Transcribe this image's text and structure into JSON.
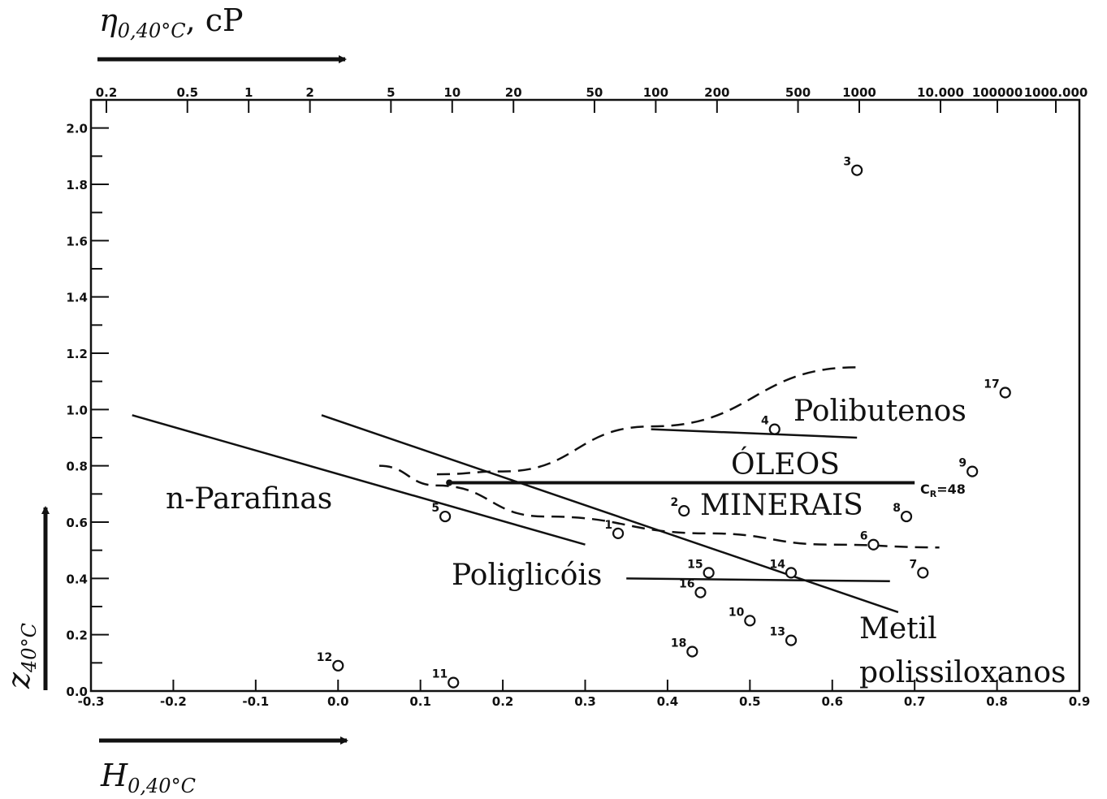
{
  "chart_data": {
    "type": "scatter",
    "axes": {
      "x_bottom": {
        "label": "H",
        "label_sub": "0,40°C",
        "range": [
          -0.3,
          0.9
        ],
        "ticks": [
          -0.3,
          -0.2,
          -0.1,
          0.0,
          0.1,
          0.2,
          0.3,
          0.4,
          0.5,
          0.6,
          0.7,
          0.8,
          0.9
        ],
        "tick_labels": [
          "-0.3",
          "-0.2",
          "-0.1",
          "0.0",
          "0.1",
          "0.2",
          "0.3",
          "0.4",
          "0.5",
          "0.6",
          "0.7",
          "0.8",
          "0.9"
        ]
      },
      "x_top": {
        "label": "η",
        "label_sub": "0,40°C",
        "label_unit": ", cP",
        "ticks": [
          0.2,
          0.5,
          1,
          2,
          5,
          10,
          20,
          50,
          100,
          200,
          500,
          1000,
          10000,
          100000,
          1000000
        ],
        "tick_labels": [
          "0.2",
          "0.5",
          "1",
          "2",
          "5",
          "10",
          "20",
          "50",
          "100",
          "200",
          "500",
          "1000",
          "10.000",
          "100000",
          "1000.000"
        ]
      },
      "y": {
        "label": "z",
        "label_sub": "40°C",
        "range": [
          0.0,
          2.1
        ],
        "ticks": [
          0.0,
          0.2,
          0.4,
          0.6,
          0.8,
          1.0,
          1.2,
          1.4,
          1.6,
          1.8,
          2.0
        ],
        "tick_labels": [
          "0.0",
          "0.2",
          "0.4",
          "0.6",
          "0.8",
          "1.0",
          "1.2",
          "1.4",
          "1.6",
          "1.8",
          "2.0"
        ]
      }
    },
    "points": [
      {
        "label": "1",
        "x": 0.34,
        "y": 0.56
      },
      {
        "label": "2",
        "x": 0.42,
        "y": 0.64
      },
      {
        "label": "3",
        "x": 0.63,
        "y": 1.85
      },
      {
        "label": "4",
        "x": 0.53,
        "y": 0.93
      },
      {
        "label": "5",
        "x": 0.13,
        "y": 0.62
      },
      {
        "label": "6",
        "x": 0.65,
        "y": 0.52
      },
      {
        "label": "7",
        "x": 0.71,
        "y": 0.42
      },
      {
        "label": "8",
        "x": 0.69,
        "y": 0.62
      },
      {
        "label": "9",
        "x": 0.77,
        "y": 0.78
      },
      {
        "label": "10",
        "x": 0.5,
        "y": 0.25
      },
      {
        "label": "11",
        "x": 0.14,
        "y": 0.03
      },
      {
        "label": "12",
        "x": 0.0,
        "y": 0.09
      },
      {
        "label": "13",
        "x": 0.55,
        "y": 0.18
      },
      {
        "label": "14",
        "x": 0.55,
        "y": 0.42
      },
      {
        "label": "15",
        "x": 0.45,
        "y": 0.42
      },
      {
        "label": "16",
        "x": 0.44,
        "y": 0.35
      },
      {
        "label": "17",
        "x": 0.81,
        "y": 1.06
      },
      {
        "label": "18",
        "x": 0.43,
        "y": 0.14
      }
    ],
    "lines": [
      {
        "style": "solid",
        "points": [
          [
            -0.25,
            0.98
          ],
          [
            0.3,
            0.52
          ]
        ]
      },
      {
        "style": "solid",
        "points": [
          [
            -0.02,
            0.98
          ],
          [
            0.68,
            0.28
          ]
        ]
      },
      {
        "style": "solid",
        "points": [
          [
            0.38,
            0.93
          ],
          [
            0.63,
            0.9
          ]
        ]
      },
      {
        "style": "solid",
        "points": [
          [
            0.35,
            0.4
          ],
          [
            0.67,
            0.39
          ]
        ]
      },
      {
        "style": "solid",
        "bold": true,
        "points": [
          [
            0.135,
            0.74
          ],
          [
            0.7,
            0.74
          ]
        ]
      },
      {
        "style": "dashed",
        "points": [
          [
            0.12,
            0.77
          ],
          [
            0.2,
            0.78
          ],
          [
            0.38,
            0.94
          ],
          [
            0.63,
            1.15
          ]
        ]
      },
      {
        "style": "dashed",
        "points": [
          [
            0.05,
            0.8
          ],
          [
            0.12,
            0.73
          ],
          [
            0.25,
            0.62
          ],
          [
            0.45,
            0.56
          ],
          [
            0.6,
            0.52
          ],
          [
            0.73,
            0.51
          ]
        ]
      }
    ],
    "annotations": {
      "cr": "C",
      "cr_sub": "R",
      "cr_value": "=48",
      "polibutenos": "Polibutenos",
      "oleos": "ÓLEOS",
      "minerais": "MINERAIS",
      "nparafinas": "n-Parafinas",
      "poliglicois": "Poliglicóis",
      "metil": "Metil",
      "polissiloxanos": "polissiloxanos"
    }
  }
}
